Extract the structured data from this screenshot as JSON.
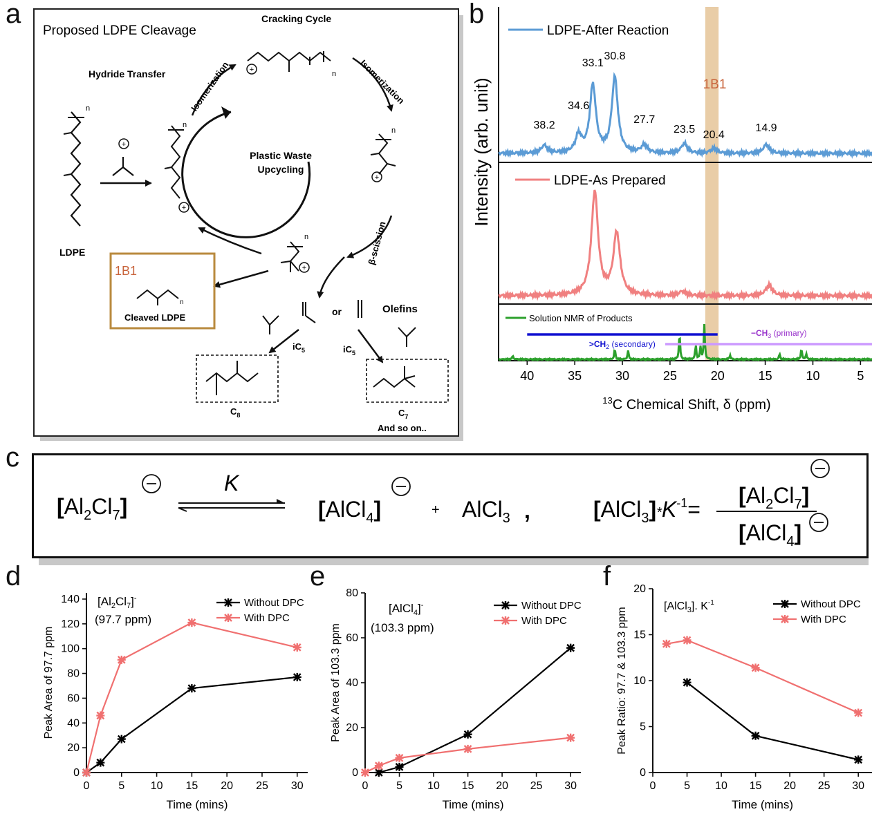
{
  "panels": {
    "a": "a",
    "b": "b",
    "c": "c",
    "d": "d",
    "e": "e",
    "f": "f"
  },
  "panel_a": {
    "title": "Proposed LDPE Cleavage",
    "cracking_cycle": "Cracking Cycle",
    "hydride_transfer": "Hydride Transfer",
    "isomerization": "Isomerization",
    "beta_scission": "β-scission",
    "center": [
      "Plastic Waste",
      "Upcycling"
    ],
    "ldpe": "LDPE",
    "tag": "1B1",
    "cleaved": "Cleaved LDPE",
    "or": "or",
    "olefins": "Olefins",
    "ic5": "iC",
    "ic5_sub": "5",
    "c8": "C",
    "c8_sub": "8",
    "c7": "C",
    "c7_sub": "7",
    "and_so_on": "And so on..",
    "n": "n"
  },
  "panel_c": {
    "k": "K",
    "plus": "+",
    "alcl3": "AlCl",
    "alcl3_sub": "3",
    "comma": ",",
    "eq_k": "K",
    "eq_exp": "-1",
    "eq_equals": "="
  },
  "chart_data": [
    {
      "panel": "b",
      "type": "line",
      "xlabel": "13C Chemical Shift, δ (ppm)",
      "xlabel_sup": "13",
      "xlabel_text": "C Chemical Shift, δ (ppm)",
      "ylabel": "Intensity (arb. unit)",
      "xlim": [
        43,
        3.5
      ],
      "xticks": [
        40,
        35,
        30,
        25,
        20,
        15,
        10,
        5
      ],
      "highlight_band_label": "1B1",
      "highlight_band_ppm": [
        21.3,
        19.9
      ],
      "series": [
        {
          "name": "LDPE-After Reaction",
          "color": "#5b9bd5",
          "peak_labels": [
            "38.2",
            "34.6",
            "33.1",
            "30.8",
            "27.7",
            "23.5",
            "20.4",
            "14.9"
          ],
          "peaks": [
            [
              38.2,
              0.08
            ],
            [
              34.6,
              0.18
            ],
            [
              33.1,
              0.7
            ],
            [
              30.8,
              0.78
            ],
            [
              27.7,
              0.08
            ],
            [
              23.5,
              0.1
            ],
            [
              20.4,
              0.05
            ],
            [
              14.9,
              0.09
            ]
          ]
        },
        {
          "name": "LDPE-As Prepared",
          "color": "#f08080",
          "peaks": [
            [
              32.9,
              1.0
            ],
            [
              30.6,
              0.6
            ],
            [
              23.7,
              0.04
            ],
            [
              14.6,
              0.1
            ]
          ]
        },
        {
          "name": "Solution NMR of Products",
          "color": "#2ca02c",
          "ranges": [
            {
              "label": "CH",
              "label_sub": "2",
              "label_suffix": " (secondary)",
              "from": 40,
              "to": 20,
              "color": "#1010d0"
            },
            {
              "label": "−CH",
              "label_sub": "3",
              "label_suffix": " (primary)",
              "from": 25.5,
              "to": 3.5,
              "color": "#cc99ff"
            }
          ],
          "peaks": [
            [
              41.5,
              0.1
            ],
            [
              30.8,
              0.3
            ],
            [
              29.4,
              0.25
            ],
            [
              24.0,
              0.75
            ],
            [
              22.3,
              0.4
            ],
            [
              21.8,
              0.35
            ],
            [
              21.4,
              0.95
            ],
            [
              18.7,
              0.12
            ],
            [
              13.5,
              0.15
            ],
            [
              11.2,
              0.3
            ],
            [
              10.7,
              0.15
            ]
          ]
        }
      ]
    },
    {
      "panel": "d",
      "type": "line",
      "title": "[Al2Cl7]-",
      "subtitle": "(97.7 ppm)",
      "xlabel": "Time (mins)",
      "ylabel": "Peak Area of 97.7 ppm",
      "xlim": [
        0,
        31.5
      ],
      "ylim": [
        0,
        145
      ],
      "xticks": [
        0,
        5,
        10,
        15,
        20,
        25,
        30
      ],
      "yticks": [
        0,
        20,
        40,
        60,
        80,
        100,
        120,
        140
      ],
      "legend_position": "top-right",
      "series": [
        {
          "name": "Without DPC",
          "color": "#000000",
          "x": [
            0,
            2,
            5,
            15,
            30
          ],
          "y": [
            0,
            8,
            27,
            68,
            77
          ]
        },
        {
          "name": "With DPC",
          "color": "#f07070",
          "x": [
            0,
            2,
            5,
            15,
            30
          ],
          "y": [
            0,
            46,
            91,
            121,
            101
          ]
        }
      ]
    },
    {
      "panel": "e",
      "type": "line",
      "title": "[AlCl4]-",
      "subtitle": "(103.3 ppm)",
      "xlabel": "Time (mins)",
      "ylabel": "Peak Area of 103.3 ppm",
      "xlim": [
        0,
        31.5
      ],
      "ylim": [
        0,
        80
      ],
      "xticks": [
        0,
        5,
        10,
        15,
        20,
        25,
        30
      ],
      "yticks": [
        0,
        20,
        40,
        60,
        80
      ],
      "legend_position": "top-right",
      "series": [
        {
          "name": "Without DPC",
          "color": "#000000",
          "x": [
            2,
            5,
            15,
            30
          ],
          "y": [
            0,
            2.5,
            17,
            55.5
          ]
        },
        {
          "name": "With DPC",
          "color": "#f07070",
          "x": [
            0,
            2,
            5,
            15,
            30
          ],
          "y": [
            0,
            3,
            6.5,
            10.5,
            15.5
          ]
        }
      ]
    },
    {
      "panel": "f",
      "type": "line",
      "title": "[AlCl3]. K-1",
      "xlabel": "Time (mins)",
      "ylabel": "Peak Ratio: 97.7 & 103.3 ppm",
      "xlim": [
        0,
        32
      ],
      "ylim": [
        0,
        20
      ],
      "xticks": [
        0,
        5,
        10,
        15,
        20,
        25,
        30
      ],
      "yticks": [
        0,
        5,
        10,
        15,
        20
      ],
      "legend_position": "top-right",
      "series": [
        {
          "name": "Without DPC",
          "color": "#000000",
          "x": [
            5,
            15,
            30
          ],
          "y": [
            9.8,
            4.0,
            1.4
          ]
        },
        {
          "name": "With DPC",
          "color": "#f07070",
          "x": [
            2,
            5,
            15,
            30
          ],
          "y": [
            14.0,
            14.4,
            11.4,
            6.5
          ]
        }
      ]
    }
  ]
}
